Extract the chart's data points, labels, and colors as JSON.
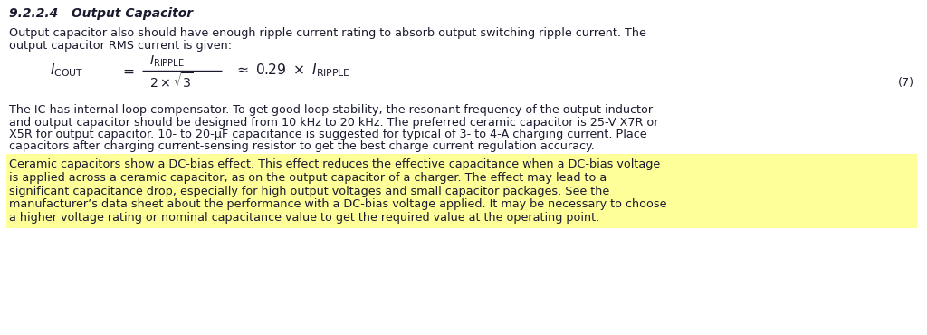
{
  "bg_color": "#ffffff",
  "heading": "9.2.2.4   Output Capacitor",
  "para1_line1": "Output capacitor also should have enough ripple current rating to absorb output switching ripple current. The",
  "para1_line2": "output capacitor RMS current is given:",
  "equation_number": "(7)",
  "para2_line1": "The IC has internal loop compensator. To get good loop stability, the resonant frequency of the output inductor",
  "para2_line2": "and output capacitor should be designed from 10 kHz to 20 kHz. The preferred ceramic capacitor is 25-V X7R or",
  "para2_line3": "X5R for output capacitor. 10- to 20-μF capacitance is suggested for typical of 3- to 4-A charging current. Place",
  "para2_line4": "capacitors after charging current-sensing resistor to get the best charge current regulation accuracy.",
  "hl_line1": "Ceramic capacitors show a DC-bias effect. This effect reduces the effective capacitance when a DC-bias voltage",
  "hl_line2": "is applied across a ceramic capacitor, as on the output capacitor of a charger. The effect may lead to a",
  "hl_line3": "significant capacitance drop, especially for high output voltages and small capacitor packages. See the",
  "hl_line4": "manufacturer’s data sheet about the performance with a DC-bias voltage applied. It may be necessary to choose",
  "hl_line5": "a higher voltage rating or nominal capacitance value to get the required value at the operating point.",
  "highlight_color": "#FFFF99",
  "text_color": "#1a1a2e",
  "font_size": 9.2,
  "heading_font_size": 10.0
}
